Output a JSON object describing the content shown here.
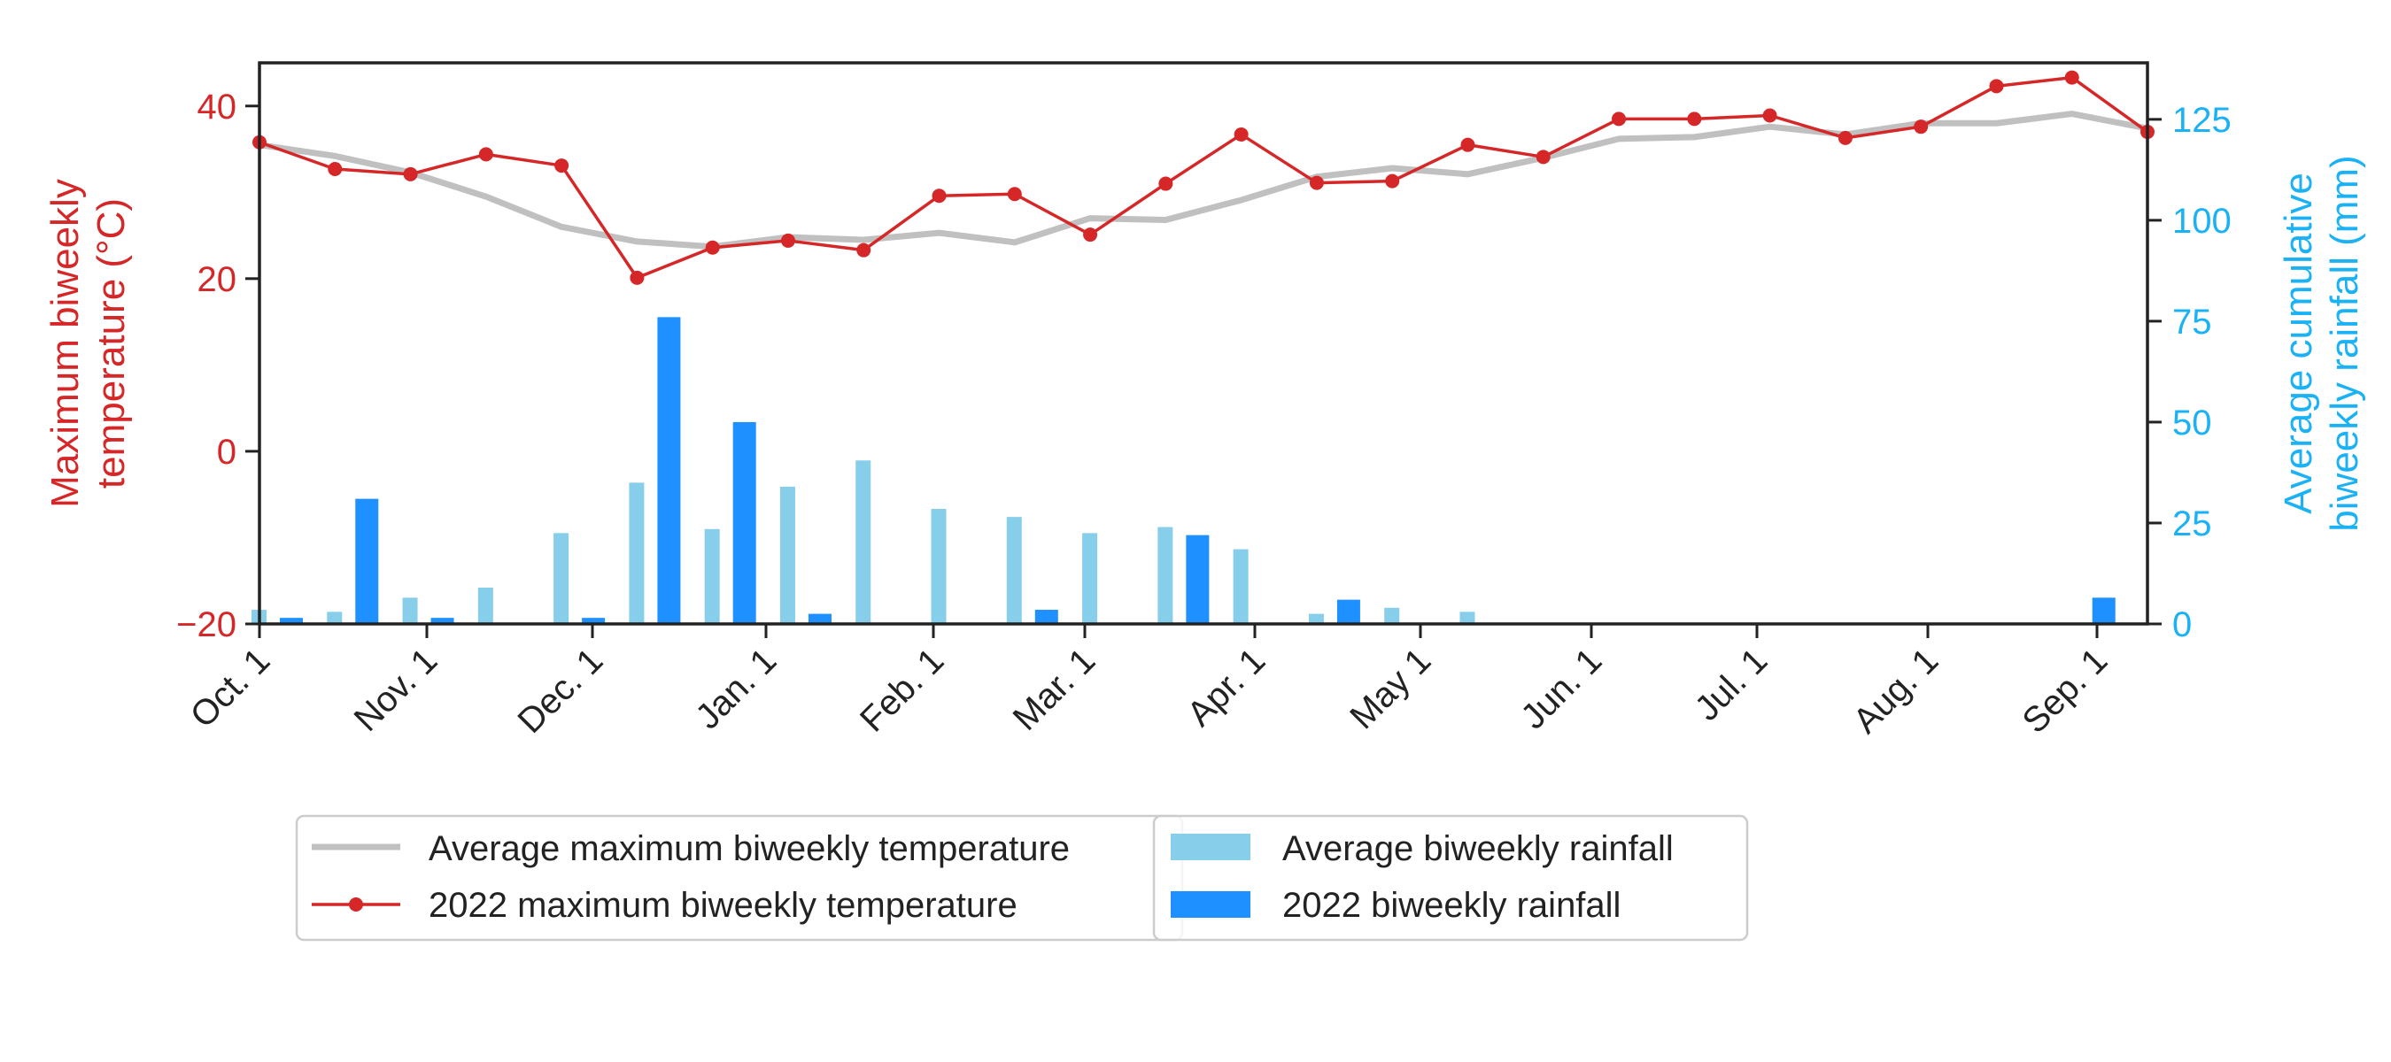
{
  "chart_data": {
    "type": "bar+line",
    "x_tick_labels": [
      "Oct. 1",
      "Nov. 1",
      "Dec. 1",
      "Jan. 1",
      "Feb. 1",
      "Mar. 1",
      "Apr. 1",
      "May 1",
      "Jun. 1",
      "Jul. 1",
      "Aug. 1",
      "Sep. 1"
    ],
    "left_axis": {
      "label_line1": "Maximum biweekly",
      "label_line2": "temperature (°C)",
      "ylim": [
        -20,
        45
      ],
      "ticks": [
        -20,
        0,
        20,
        40
      ],
      "color": "#d62728"
    },
    "right_axis": {
      "label_line1": "Average cumulative",
      "label_line2": "biweekly rainfall (mm)",
      "ylim": [
        0,
        139
      ],
      "ticks": [
        0,
        25,
        50,
        75,
        100,
        125
      ],
      "color": "#1ab2f5"
    },
    "series": [
      {
        "name": "Average maximum biweekly temperature",
        "type": "line",
        "axis": "left",
        "color": "#c0c0c0",
        "values": [
          35.5,
          34.2,
          32.3,
          29.5,
          26.0,
          24.3,
          23.7,
          24.8,
          24.5,
          25.3,
          24.2,
          27.0,
          26.8,
          29.1,
          31.8,
          32.8,
          32.1,
          34.0,
          36.2,
          36.4,
          37.6,
          36.7,
          38.0,
          38.0,
          39.1,
          37.4
        ]
      },
      {
        "name": "2022 maximum biweekly temperature",
        "type": "line",
        "axis": "left",
        "color": "#d62728",
        "values": [
          35.8,
          32.7,
          32.1,
          34.4,
          33.1,
          20.1,
          23.6,
          24.4,
          23.3,
          29.6,
          29.8,
          25.1,
          31.0,
          36.7,
          31.1,
          31.3,
          35.5,
          34.1,
          38.5,
          38.5,
          38.9,
          36.3,
          37.6,
          42.3,
          43.3,
          37.0
        ]
      },
      {
        "name": "Average biweekly rainfall",
        "type": "bar",
        "axis": "right",
        "color": "#87ceeb",
        "values": [
          3.5,
          3.0,
          6.5,
          9.0,
          22.5,
          35.0,
          23.5,
          34.0,
          40.5,
          28.5,
          26.5,
          22.5,
          24.0,
          18.5,
          2.5,
          4.0,
          3.0,
          0.3,
          0,
          0,
          0,
          0,
          0,
          0,
          0.3
        ]
      },
      {
        "name": "2022 biweekly rainfall",
        "type": "bar",
        "axis": "right",
        "color": "#1e90ff",
        "values": [
          1.5,
          31.0,
          1.5,
          0,
          1.5,
          76.0,
          50.0,
          2.5,
          0,
          0,
          3.5,
          0,
          22.0,
          0,
          6.0,
          0,
          0,
          0,
          0,
          0,
          0,
          0,
          0,
          0,
          6.5
        ]
      }
    ],
    "legend": {
      "placement": "bottom-left",
      "entries": [
        {
          "label": "Average maximum biweekly temperature",
          "color": "#c0c0c0",
          "kind": "line"
        },
        {
          "label": "2022 maximum biweekly temperature",
          "color": "#d62728",
          "kind": "line-marker"
        },
        {
          "label": "Average biweekly rainfall",
          "color": "#87ceeb",
          "kind": "patch"
        },
        {
          "label": "2022 biweekly rainfall",
          "color": "#1e90ff",
          "kind": "patch"
        }
      ]
    },
    "grid": false
  }
}
